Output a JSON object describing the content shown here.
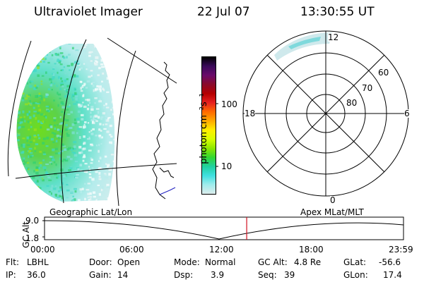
{
  "header": {
    "instrument": "Ultraviolet Imager",
    "date": "22 Jul 07",
    "time": "13:30:55 UT"
  },
  "colorbar": {
    "unit_label": "photon cm⁻²s⁻¹",
    "ticks": [
      "100",
      "10"
    ],
    "colors": [
      "#000000",
      "#3a0a5a",
      "#6a0a6a",
      "#8a0a2a",
      "#b40000",
      "#e62020",
      "#ff6a00",
      "#ffaa00",
      "#ffee00",
      "#d8ff00",
      "#8ce600",
      "#32d732",
      "#20d0a0",
      "#40e0e0",
      "#a0ecec",
      "#dcecec"
    ]
  },
  "polar": {
    "lat_labels": [
      "60",
      "70",
      "80"
    ],
    "mlt_labels": {
      "top": "12",
      "bottom": "0",
      "left": "18",
      "right": "6"
    }
  },
  "timeline": {
    "axis_label": "GC Alt",
    "y_ticks": [
      "9.0",
      "1.8"
    ],
    "left_label": "Geographic Lat/Lon",
    "right_label": "Apex MLat/MLT",
    "x_ticks": [
      "00:00",
      "06:00",
      "12:00",
      "18:00",
      "23:59"
    ],
    "current_fraction": 0.5632,
    "marker_color": "#d01020"
  },
  "footer": {
    "flt_label": "Flt:",
    "flt_value": "LBHL",
    "ip_label": "IP:",
    "ip_value": "36.0",
    "door_label": "Door:",
    "door_value": "Open",
    "gain_label": "Gain:",
    "gain_value": "14",
    "mode_label": "Mode:",
    "mode_value": "Normal",
    "dsp_label": "Dsp:",
    "dsp_value": "3.9",
    "gcalt_label": "GC Alt:",
    "gcalt_value": "4.8 Re",
    "seq_label": "Seq:",
    "seq_value": "39",
    "glat_label": "GLat:",
    "glat_value": "-56.6",
    "glon_label": "GLon:",
    "glon_value": "17.4"
  }
}
